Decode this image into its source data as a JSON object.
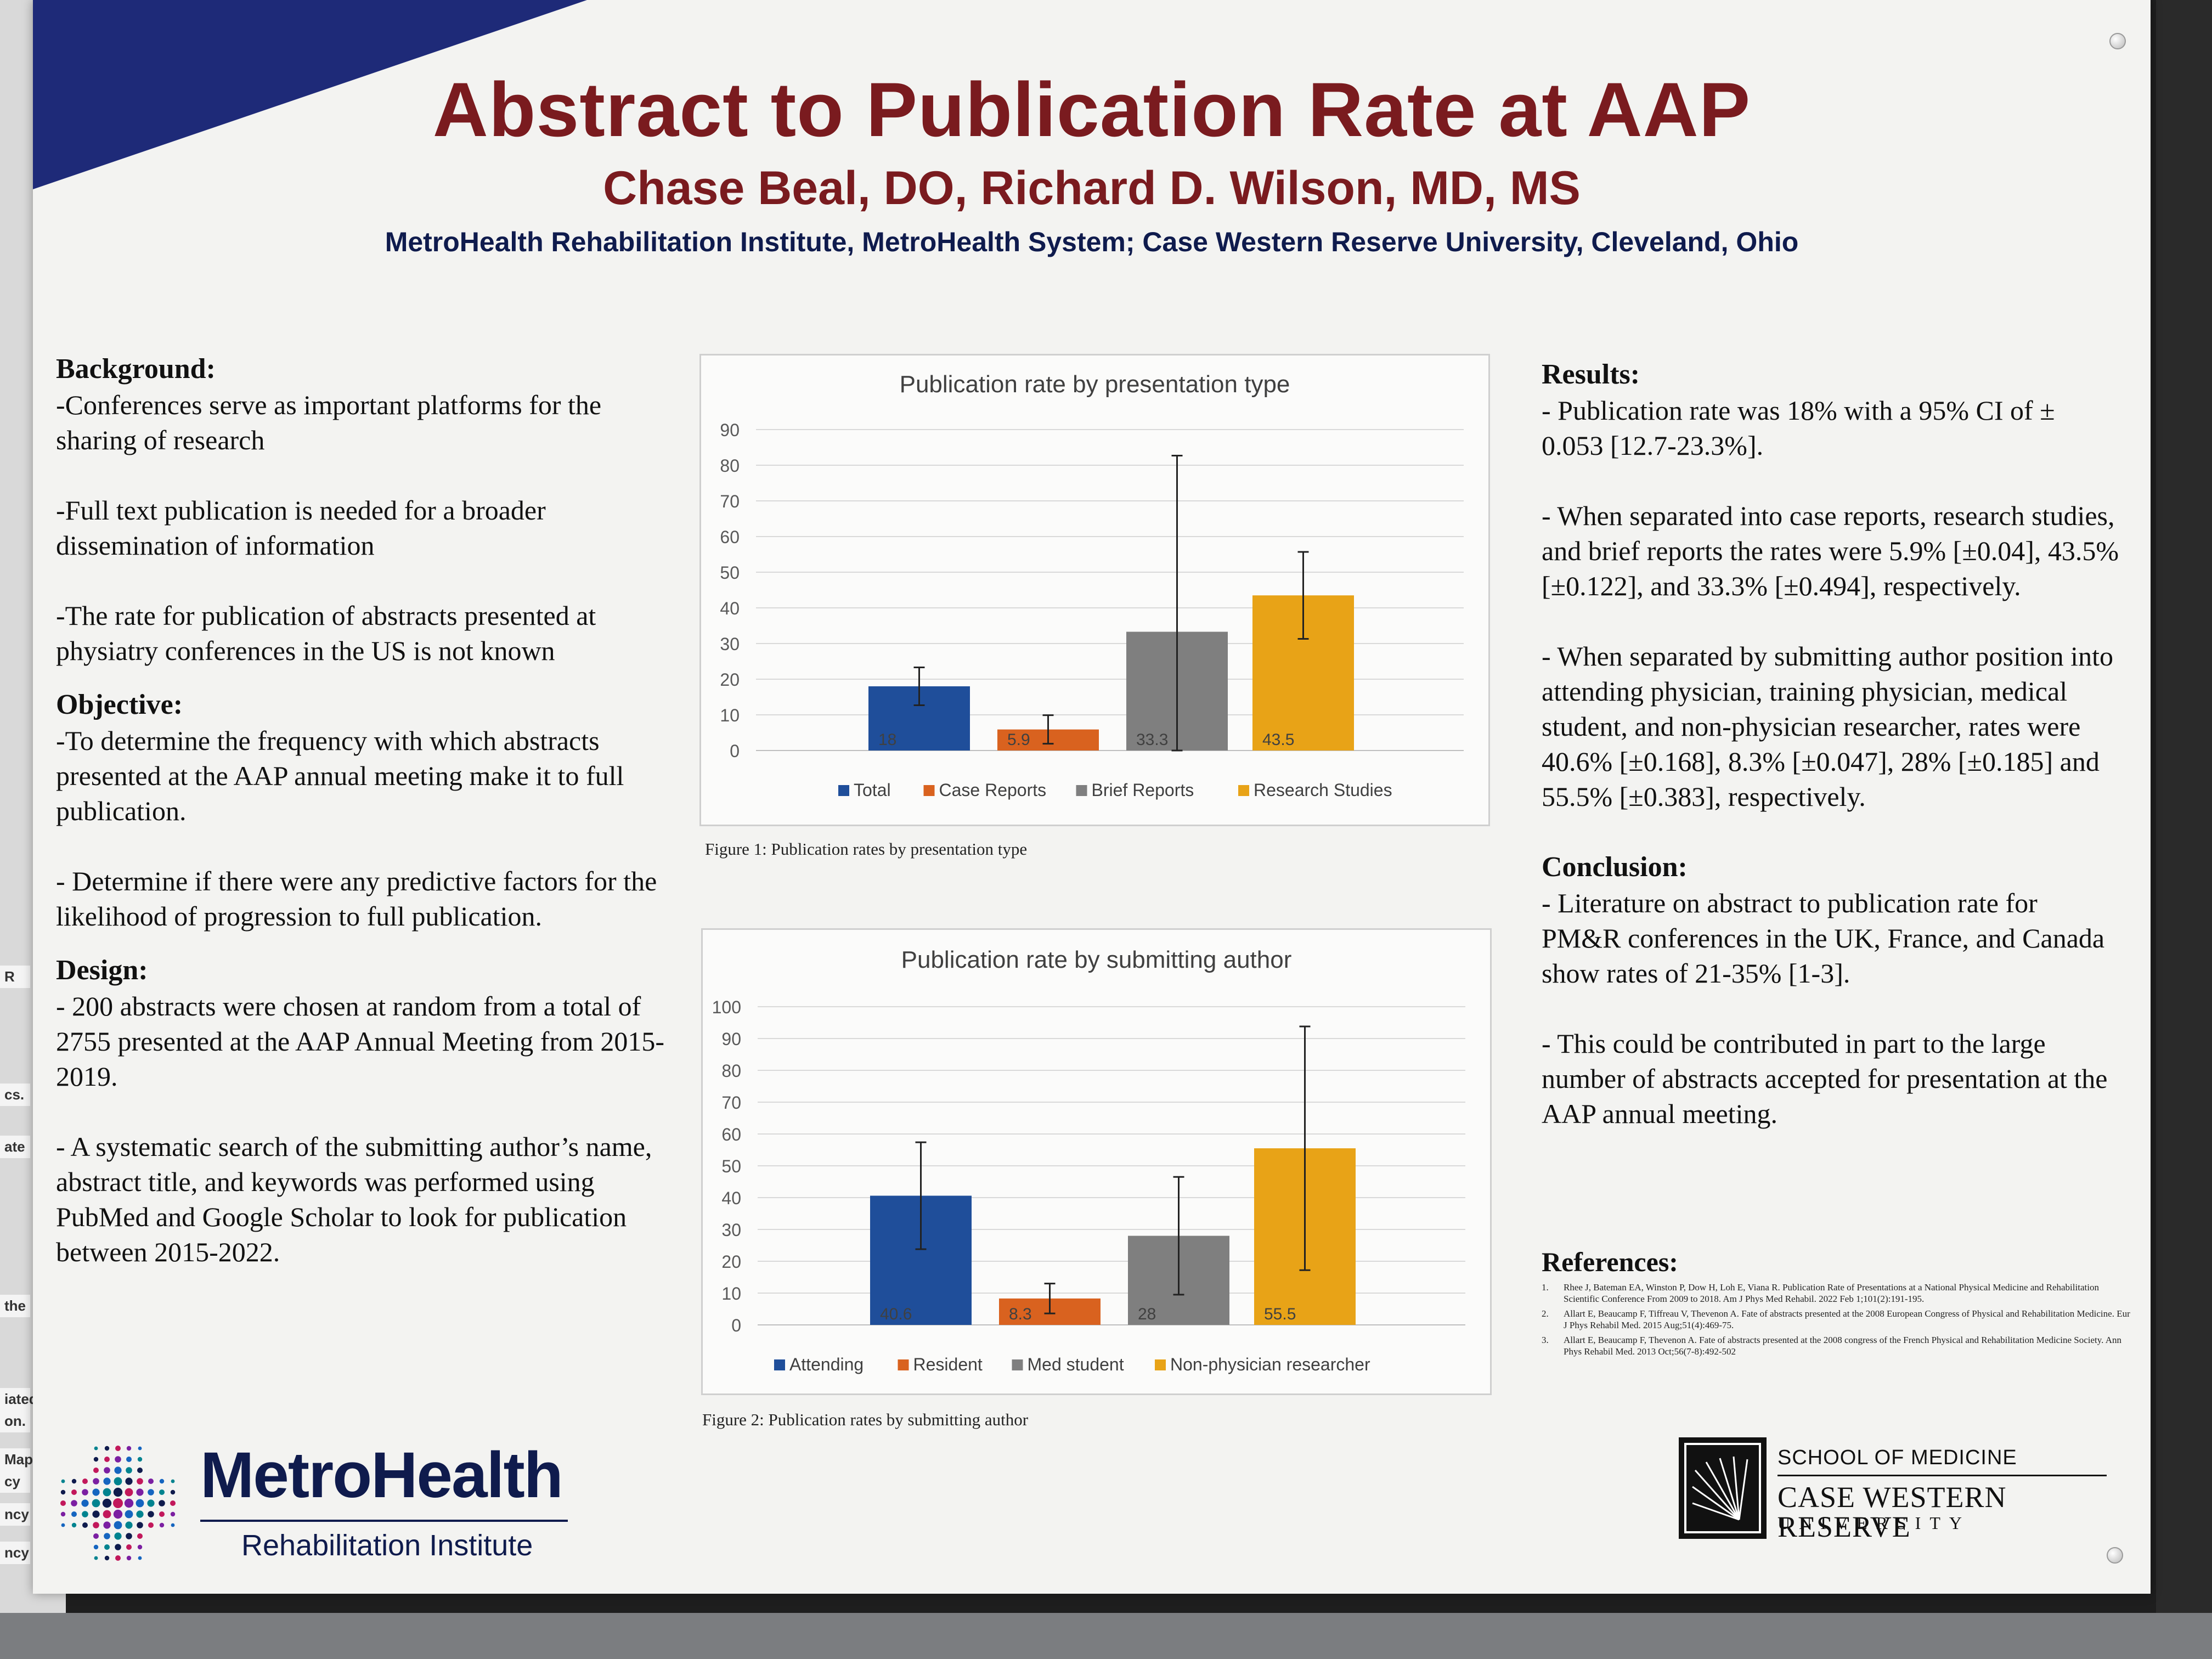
{
  "poster": {
    "title": "Abstract to Publication Rate at AAP",
    "authors": "Chase Beal, DO, Richard D. Wilson, MD, MS",
    "affiliation": "MetroHealth Rehabilitation Institute, MetroHealth System; Case Western Reserve University, Cleveland, Ohio"
  },
  "colors": {
    "title": "#7a1b1f",
    "navy": "#0f1b4d",
    "total": "#1f4e9a",
    "orange": "#d9621f",
    "gray": "#7f7f7f",
    "gold": "#e8a317"
  },
  "left": {
    "background_heading": "Background:",
    "background": [
      "-Conferences serve as important platforms for the sharing of research",
      "-Full text publication is needed for a broader dissemination of information",
      "-The rate for publication of abstracts presented at physiatry conferences in the US is not known"
    ],
    "objective_heading": "Objective:",
    "objective": [
      "-To determine the frequency with which abstracts presented at the AAP annual meeting make it to full publication.",
      "- Determine if there were any predictive factors for the likelihood of progression to full publication."
    ],
    "design_heading": "Design:",
    "design": [
      "- 200 abstracts were chosen at random from a total of 2755 presented at the AAP Annual Meeting from 2015-2019.",
      "- A systematic search of the submitting author’s name, abstract title, and keywords was performed using PubMed and Google Scholar to look for publication between 2015-2022."
    ]
  },
  "right": {
    "results_heading": "Results:",
    "results": [
      "- Publication rate was 18% with a 95% CI of ± 0.053 [12.7-23.3%].",
      "- When separated into case reports, research studies, and brief reports the rates were 5.9% [±0.04], 43.5% [±0.122], and 33.3% [±0.494], respectively.",
      "- When separated by submitting author position into attending physician, training physician, medical student, and non-physician researcher, rates were 40.6% [±0.168], 8.3% [±0.047], 28% [±0.185] and 55.5% [±0.383], respectively."
    ],
    "conclusion_heading": "Conclusion:",
    "conclusion": [
      "- Literature on abstract to publication rate for PM&R conferences in the UK, France, and Canada show rates of 21-35% [1-3].",
      "- This could be contributed in part to the large number of abstracts accepted for presentation at the AAP annual meeting."
    ],
    "references_heading": "References:",
    "references": [
      {
        "num": "1.",
        "text": "Rhee J, Bateman EA, Winston P, Dow H, Loh E, Viana R. Publication Rate of Presentations at a National Physical Medicine and Rehabilitation Scientific Conference From 2009 to 2018. Am J Phys Med Rehabil. 2022 Feb 1;101(2):191-195."
      },
      {
        "num": "2.",
        "text": "Allart E, Beaucamp F, Tiffreau V, Thevenon A. Fate of abstracts presented at the 2008 European Congress of Physical and Rehabilitation Medicine. Eur J Phys Rehabil Med. 2015 Aug;51(4):469-75."
      },
      {
        "num": "3.",
        "text": "Allart E, Beaucamp F, Thevenon A. Fate of abstracts presented at the 2008 congress of the French Physical and Rehabilitation Medicine Society. Ann Phys Rehabil Med. 2013 Oct;56(7-8):492-502"
      }
    ]
  },
  "figures": {
    "fig1_caption": "Figure 1: Publication rates by presentation type",
    "fig2_caption": "Figure 2: Publication rates by submitting author"
  },
  "logos": {
    "metro_name": "MetroHealth",
    "metro_sub": "Rehabilitation Institute",
    "cwru_school": "SCHOOL OF MEDICINE",
    "cwru_name": "CASE WESTERN RESERVE",
    "cwru_univ": "UNIVERSITY"
  },
  "neighbor_poster_fragments": [
    "R",
    "cs.",
    "ate",
    "the",
    "iated",
    "on.",
    "Map.",
    "cy",
    "ncy",
    "ncy"
  ],
  "chart_data": [
    {
      "type": "bar",
      "title": "Publication rate by presentation type",
      "ylim": [
        0,
        90
      ],
      "yticks": [
        0,
        10,
        20,
        30,
        40,
        50,
        60,
        70,
        80,
        90
      ],
      "grid": true,
      "legend": "bottom",
      "series": [
        {
          "name": "Total",
          "value": 18,
          "label": "18",
          "err_low": 12.7,
          "err_high": 23.3,
          "color": "#1f4e9a"
        },
        {
          "name": "Case Reports",
          "value": 5.9,
          "label": "5.9",
          "err_low": 1.9,
          "err_high": 9.9,
          "color": "#d9621f"
        },
        {
          "name": "Brief Reports",
          "value": 33.3,
          "label": "33.3",
          "err_low": 0,
          "err_high": 82.7,
          "color": "#7f7f7f"
        },
        {
          "name": "Research Studies",
          "value": 43.5,
          "label": "43.5",
          "err_low": 31.3,
          "err_high": 55.7,
          "color": "#e8a317"
        }
      ]
    },
    {
      "type": "bar",
      "title": "Publication rate by submitting author",
      "ylim": [
        0,
        100
      ],
      "yticks": [
        0,
        10,
        20,
        30,
        40,
        50,
        60,
        70,
        80,
        90,
        100
      ],
      "grid": true,
      "legend": "bottom",
      "series": [
        {
          "name": "Attending",
          "value": 40.6,
          "label": "40.6",
          "err_low": 23.8,
          "err_high": 57.4,
          "color": "#1f4e9a"
        },
        {
          "name": "Resident",
          "value": 8.3,
          "label": "8.3",
          "err_low": 3.6,
          "err_high": 13,
          "color": "#d9621f"
        },
        {
          "name": "Med student",
          "value": 28,
          "label": "28",
          "err_low": 9.5,
          "err_high": 46.5,
          "color": "#7f7f7f"
        },
        {
          "name": "Non-physician researcher",
          "value": 55.5,
          "label": "55.5",
          "err_low": 17.2,
          "err_high": 93.8,
          "color": "#e8a317"
        }
      ]
    }
  ]
}
